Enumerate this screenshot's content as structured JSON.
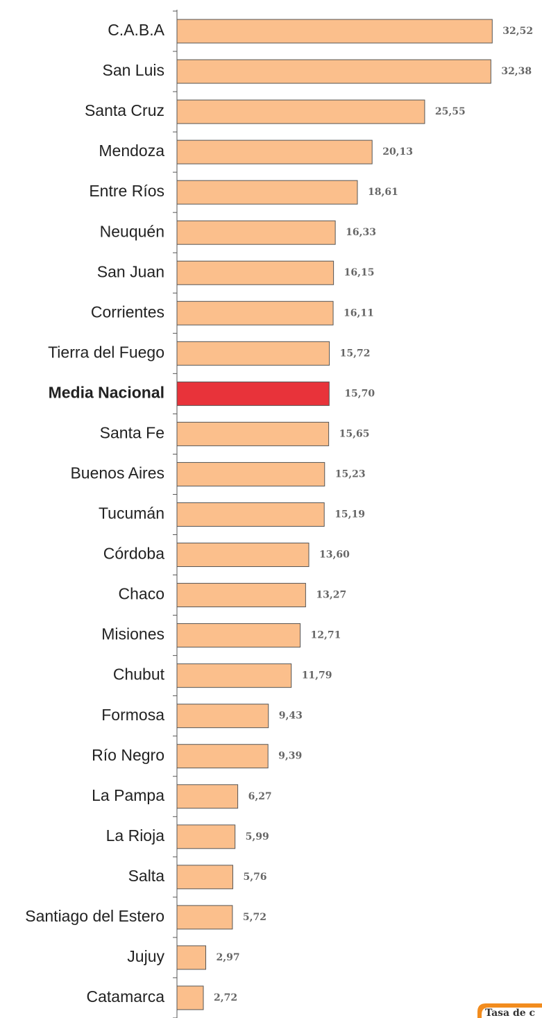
{
  "chart_data": {
    "type": "barh",
    "categories": [
      "C.A.B.A",
      "San Luis",
      "Santa Cruz",
      "Mendoza",
      "Entre Ríos",
      "Neuquén",
      "San Juan",
      "Corrientes",
      "Tierra del Fuego",
      "Media Nacional",
      "Santa Fe",
      "Buenos Aires",
      "Tucumán",
      "Córdoba",
      "Chaco",
      "Misiones",
      "Chubut",
      "Formosa",
      "Río Negro",
      "La Pampa",
      "La Rioja",
      "Salta",
      "Santiago del Estero",
      "Jujuy",
      "Catamarca"
    ],
    "values": [
      32.52,
      32.38,
      25.55,
      20.13,
      18.61,
      16.33,
      16.15,
      16.11,
      15.72,
      15.7,
      15.65,
      15.23,
      15.19,
      13.6,
      13.27,
      12.71,
      11.79,
      9.43,
      9.39,
      6.27,
      5.99,
      5.76,
      5.72,
      2.97,
      2.72
    ],
    "value_labels": [
      "32,52",
      "32,38",
      "25,55",
      "20,13",
      "18,61",
      "16,33",
      "16,15",
      "16,11",
      "15,72",
      "15,70",
      "15,65",
      "15,23",
      "15,19",
      "13,60",
      "13,27",
      "12,71",
      "11,79",
      "9,43",
      "9,39",
      "6,27",
      "5,99",
      "5,76",
      "5,72",
      "2,97",
      "2,72"
    ],
    "color": "#fbbf8c",
    "highlight_index": 9,
    "highlight_color": "#e8333a",
    "xlim": [
      0,
      33
    ],
    "annotation": "Tasa de c"
  }
}
